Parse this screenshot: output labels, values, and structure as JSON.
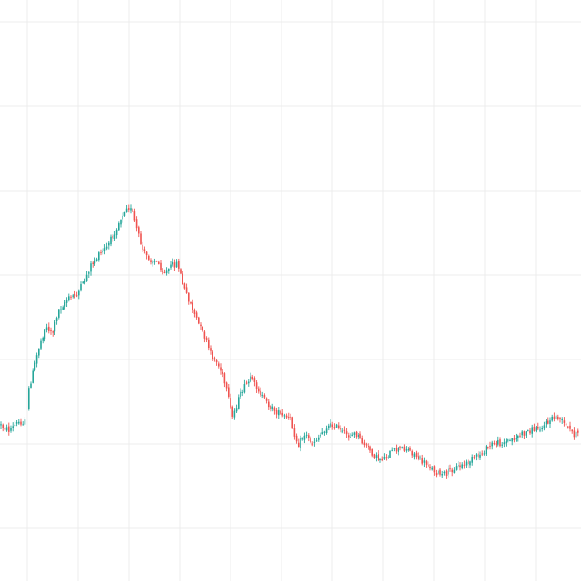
{
  "chart_data": {
    "type": "candlestick",
    "title": "",
    "xlabel": "",
    "ylabel": "",
    "grid": true,
    "legend": "none",
    "axes_visible": false,
    "ylim": [
      0,
      640
    ],
    "colors": {
      "up": "#26a69a",
      "down": "#ef5350",
      "grid": "#ececec",
      "background": "#ffffff"
    },
    "close_path": [
      [
        0,
        468
      ],
      [
        10,
        474
      ],
      [
        20,
        465
      ],
      [
        28,
        465
      ],
      [
        32,
        427
      ],
      [
        36,
        412
      ],
      [
        42,
        385
      ],
      [
        50,
        360
      ],
      [
        58,
        366
      ],
      [
        64,
        342
      ],
      [
        74,
        330
      ],
      [
        84,
        324
      ],
      [
        92,
        312
      ],
      [
        100,
        292
      ],
      [
        110,
        280
      ],
      [
        118,
        272
      ],
      [
        126,
        256
      ],
      [
        134,
        238
      ],
      [
        140,
        226
      ],
      [
        146,
        234
      ],
      [
        152,
        258
      ],
      [
        158,
        278
      ],
      [
        166,
        286
      ],
      [
        174,
        290
      ],
      [
        182,
        300
      ],
      [
        190,
        292
      ],
      [
        196,
        290
      ],
      [
        202,
        316
      ],
      [
        208,
        330
      ],
      [
        214,
        345
      ],
      [
        220,
        360
      ],
      [
        226,
        372
      ],
      [
        232,
        390
      ],
      [
        238,
        398
      ],
      [
        244,
        410
      ],
      [
        250,
        432
      ],
      [
        256,
        460
      ],
      [
        262,
        442
      ],
      [
        268,
        428
      ],
      [
        276,
        418
      ],
      [
        284,
        428
      ],
      [
        292,
        442
      ],
      [
        300,
        450
      ],
      [
        310,
        458
      ],
      [
        320,
        462
      ],
      [
        328,
        490
      ],
      [
        336,
        478
      ],
      [
        344,
        488
      ],
      [
        352,
        480
      ],
      [
        360,
        470
      ],
      [
        368,
        468
      ],
      [
        376,
        476
      ],
      [
        384,
        480
      ],
      [
        392,
        478
      ],
      [
        400,
        488
      ],
      [
        408,
        496
      ],
      [
        416,
        506
      ],
      [
        424,
        504
      ],
      [
        432,
        498
      ],
      [
        440,
        494
      ],
      [
        448,
        494
      ],
      [
        456,
        500
      ],
      [
        464,
        508
      ],
      [
        472,
        512
      ],
      [
        480,
        520
      ],
      [
        488,
        524
      ],
      [
        496,
        518
      ],
      [
        504,
        514
      ],
      [
        512,
        512
      ],
      [
        520,
        506
      ],
      [
        528,
        502
      ],
      [
        536,
        494
      ],
      [
        544,
        488
      ],
      [
        552,
        488
      ],
      [
        560,
        486
      ],
      [
        568,
        482
      ],
      [
        576,
        478
      ],
      [
        584,
        474
      ],
      [
        592,
        472
      ],
      [
        600,
        468
      ],
      [
        608,
        462
      ],
      [
        614,
        458
      ],
      [
        620,
        466
      ],
      [
        626,
        472
      ],
      [
        632,
        478
      ],
      [
        639,
        480
      ]
    ]
  }
}
